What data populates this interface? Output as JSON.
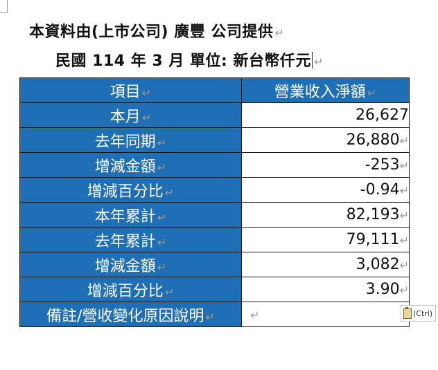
{
  "header": {
    "line1": "本資料由(上市公司) 廣豐  公司提供",
    "line2": "民國 114 年 3 月   單位:  新台幣仟元"
  },
  "table": {
    "col_item": "項目",
    "col_revenue": "營業收入淨額",
    "rows": [
      {
        "label": "本月",
        "value": "26,627"
      },
      {
        "label": "去年同期",
        "value": "26,880"
      },
      {
        "label": "增減金額",
        "value": "-253"
      },
      {
        "label": "增減百分比",
        "value": "-0.94"
      },
      {
        "label": "本年累計",
        "value": "82,193"
      },
      {
        "label": "去年累計",
        "value": "79,111"
      },
      {
        "label": "增減金額",
        "value": "3,082"
      },
      {
        "label": "增減百分比",
        "value": "3.90"
      },
      {
        "label": "備註/營收變化原因說明",
        "value": ""
      }
    ]
  },
  "paste_options": {
    "label": "(Ctrl)"
  },
  "marks": {
    "paragraph": "↵",
    "paragraph_alt": "↵",
    "cell_end": "↵",
    "paragraph_icon": "paragraph-mark-icon",
    "clipboard_icon": "clipboard-icon"
  },
  "colors": {
    "header_fill": "#1f6fb7",
    "header_text": "#ffffff"
  }
}
